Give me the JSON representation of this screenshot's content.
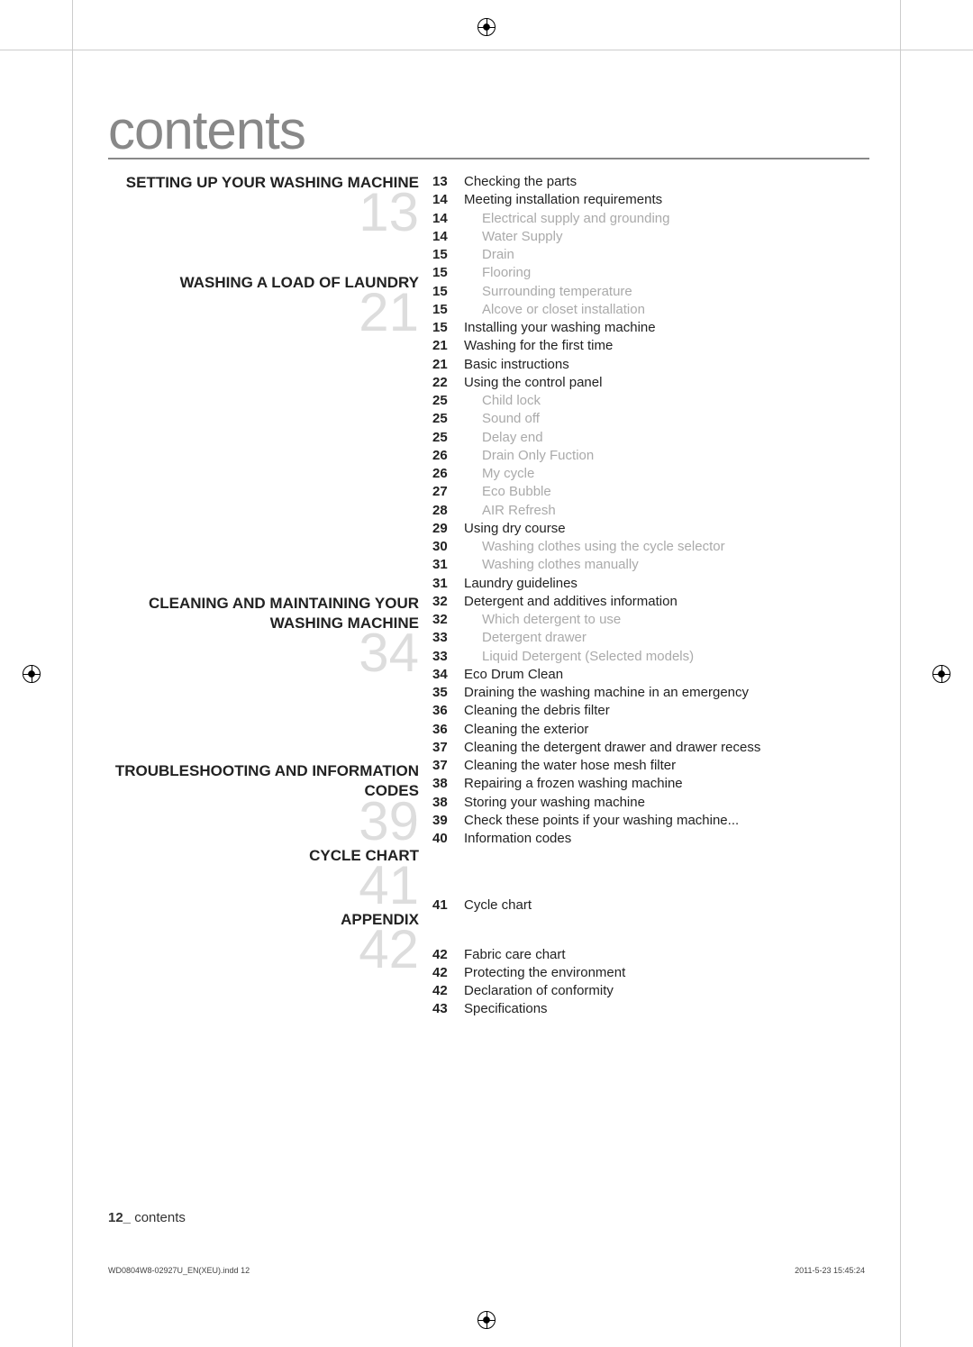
{
  "title": "contents",
  "sections": [
    {
      "title": "SETTING UP YOUR WASHING MACHINE",
      "number": "13",
      "items": [
        {
          "page": "13",
          "text": "Checking the parts",
          "sub": false
        },
        {
          "page": "14",
          "text": "Meeting installation requirements",
          "sub": false
        },
        {
          "page": "14",
          "text": "Electrical supply and grounding",
          "sub": true
        },
        {
          "page": "14",
          "text": "Water Supply",
          "sub": true
        },
        {
          "page": "15",
          "text": "Drain",
          "sub": true
        },
        {
          "page": "15",
          "text": "Flooring",
          "sub": true
        },
        {
          "page": "15",
          "text": "Surrounding temperature",
          "sub": true
        },
        {
          "page": "15",
          "text": "Alcove or closet installation",
          "sub": true
        },
        {
          "page": "15",
          "text": "Installing your washing machine",
          "sub": false
        }
      ]
    },
    {
      "title": "WASHING A LOAD OF LAUNDRY",
      "number": "21",
      "items": [
        {
          "page": "21",
          "text": "Washing for the first time",
          "sub": false
        },
        {
          "page": "21",
          "text": "Basic instructions",
          "sub": false
        },
        {
          "page": "22",
          "text": "Using the control panel",
          "sub": false
        },
        {
          "page": "25",
          "text": "Child lock",
          "sub": true
        },
        {
          "page": "25",
          "text": "Sound off",
          "sub": true
        },
        {
          "page": "25",
          "text": "Delay end",
          "sub": true
        },
        {
          "page": "26",
          "text": "Drain Only Fuction",
          "sub": true
        },
        {
          "page": "26",
          "text": "My cycle",
          "sub": true
        },
        {
          "page": "27",
          "text": "Eco Bubble",
          "sub": true
        },
        {
          "page": "28",
          "text": "AIR Refresh",
          "sub": true
        },
        {
          "page": "29",
          "text": "Using dry course",
          "sub": false
        },
        {
          "page": "30",
          "text": "Washing clothes using the cycle selector",
          "sub": true
        },
        {
          "page": "31",
          "text": "Washing clothes manually",
          "sub": true
        },
        {
          "page": "31",
          "text": "Laundry guidelines",
          "sub": false
        },
        {
          "page": "32",
          "text": "Detergent and additives information",
          "sub": false
        },
        {
          "page": "32",
          "text": "Which detergent to use",
          "sub": true
        },
        {
          "page": "33",
          "text": "Detergent drawer",
          "sub": true
        },
        {
          "page": "33",
          "text": "Liquid Detergent (Selected models)",
          "sub": true
        }
      ]
    },
    {
      "title": "CLEANING AND MAINTAINING YOUR WASHING MACHINE",
      "number": "34",
      "items": [
        {
          "page": "34",
          "text": "Eco Drum Clean",
          "sub": false
        },
        {
          "page": "35",
          "text": "Draining the washing machine in an emergency",
          "sub": false
        },
        {
          "page": "36",
          "text": "Cleaning the debris filter",
          "sub": false
        },
        {
          "page": "36",
          "text": "Cleaning the exterior",
          "sub": false
        },
        {
          "page": "37",
          "text": "Cleaning the detergent drawer and drawer recess",
          "sub": false
        },
        {
          "page": "37",
          "text": "Cleaning the water hose mesh filter",
          "sub": false
        },
        {
          "page": "38",
          "text": "Repairing a frozen washing machine",
          "sub": false
        },
        {
          "page": "38",
          "text": "Storing your washing machine",
          "sub": false
        }
      ]
    },
    {
      "title": "TROUBLESHOOTING AND INFORMATION CODES",
      "number": "39",
      "items": [
        {
          "page": "39",
          "text": "Check these points if your washing machine...",
          "sub": false
        },
        {
          "page": "40",
          "text": "Information codes",
          "sub": false
        }
      ]
    },
    {
      "title": "CYCLE CHART",
      "number": "41",
      "items": [
        {
          "page": "41",
          "text": "Cycle chart",
          "sub": false
        }
      ]
    },
    {
      "title": "APPENDIX",
      "number": "42",
      "items": [
        {
          "page": "42",
          "text": "Fabric care chart",
          "sub": false
        },
        {
          "page": "42",
          "text": "Protecting the environment",
          "sub": false
        },
        {
          "page": "42",
          "text": "Declaration of conformity",
          "sub": false
        },
        {
          "page": "43",
          "text": "Specifications",
          "sub": false
        }
      ]
    }
  ],
  "footer": {
    "pageNumBold": "12_",
    "pageLabel": " contents",
    "fileName": "WD0804W8-02927U_EN(XEU).indd   12",
    "timestamp": "2011-5-23   15:45:24"
  },
  "colors": {
    "titleColor": "#888888",
    "bigNumColor": "#dddddd",
    "subTextColor": "#aaaaaa",
    "textColor": "#222222",
    "background": "#ffffff"
  }
}
